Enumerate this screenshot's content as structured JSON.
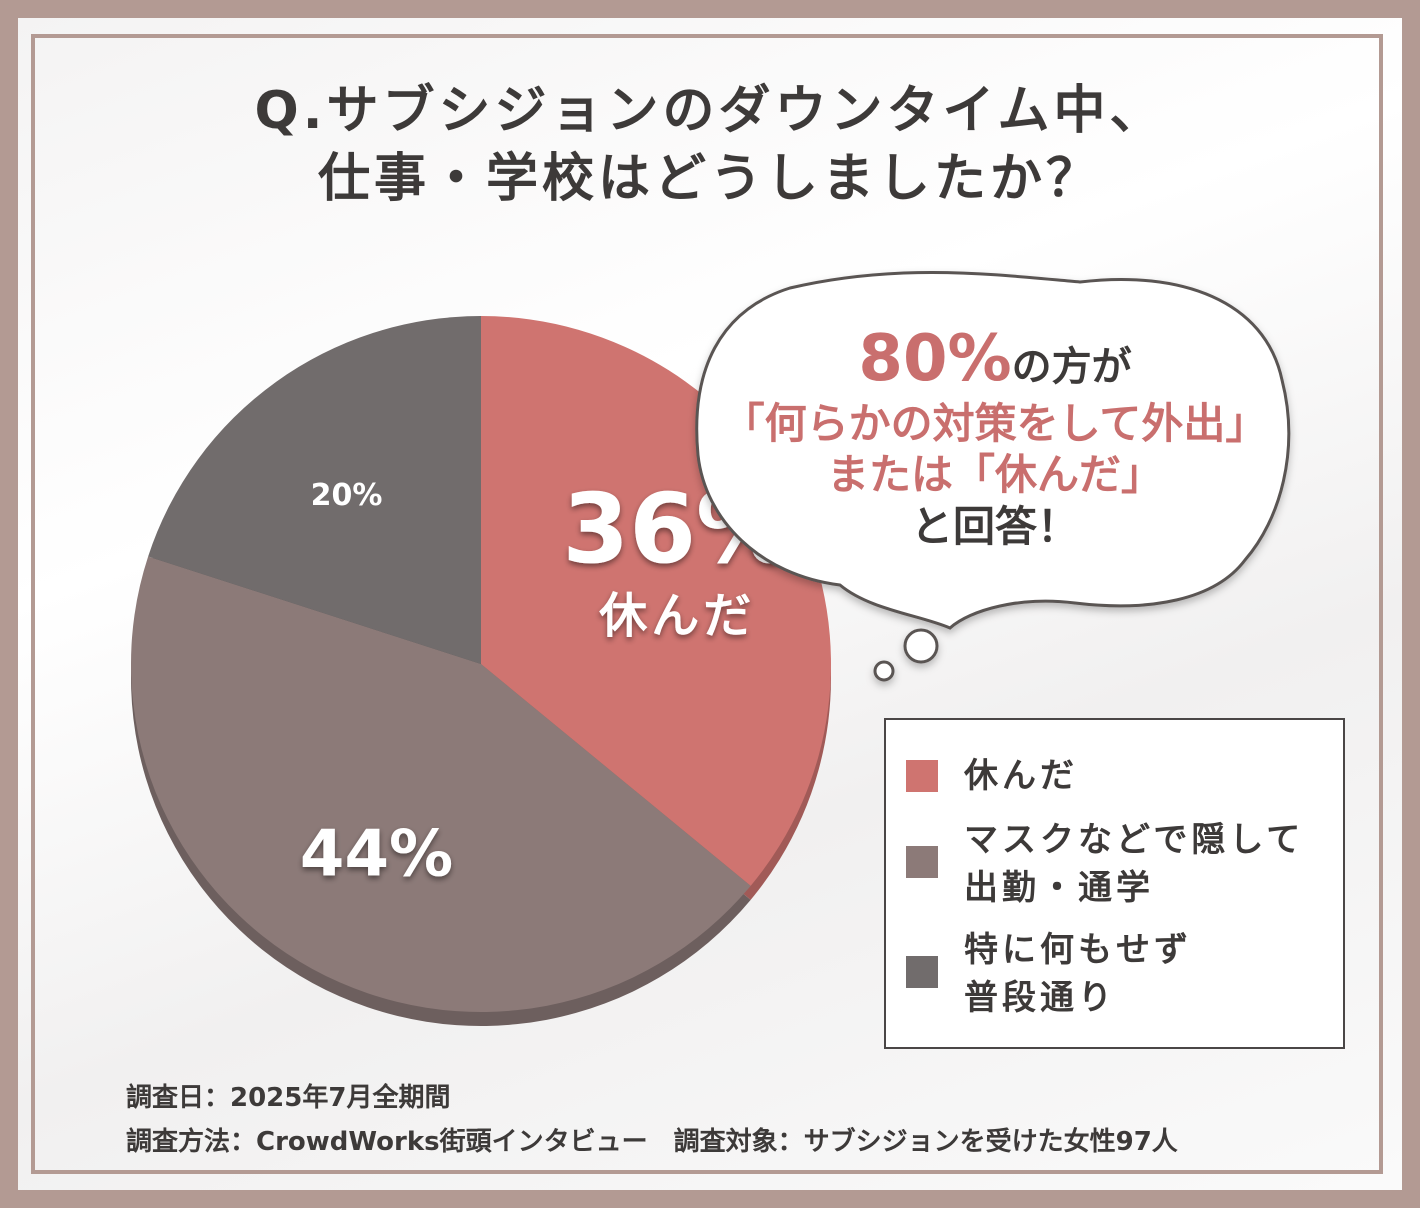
{
  "title": {
    "line1": "Q.サブシジョンのダウンタイム中、",
    "line2": "仕事・学校はどうしましたか？"
  },
  "chart_data": {
    "type": "pie",
    "slices": [
      {
        "label": "休んだ",
        "value": 36,
        "display": "36%",
        "callout": "休んだ",
        "color": "#cf7470"
      },
      {
        "label": "マスクなどで隠して出勤・通学",
        "value": 44,
        "display": "44%",
        "color": "#8c7a78"
      },
      {
        "label": "特に何もせず普段通り",
        "value": 20,
        "display": "20%",
        "color": "#716c6c"
      }
    ],
    "legend_placement": "bottom-right"
  },
  "callout": {
    "pct": "80%",
    "pct_suffix": "の方が",
    "line2": "「何らかの対策をして外出」",
    "line3": "または「休んだ」",
    "line4": "と回答！"
  },
  "legend": {
    "items": [
      {
        "lines": [
          "休んだ"
        ],
        "color": "#cf7470"
      },
      {
        "lines": [
          "マスクなどで隠して",
          "出勤・通学"
        ],
        "color": "#8c7a78"
      },
      {
        "lines": [
          "特に何もせず",
          "普段通り"
        ],
        "color": "#716c6c"
      }
    ]
  },
  "footer": {
    "line1": "調査日：2025年7月全期間",
    "line2": "調査方法：CrowdWorks街頭インタビュー　調査対象：サブシジョンを受けた女性97人"
  },
  "colors": {
    "accent": "#c96f6e",
    "frame": "#b39a93",
    "text": "#3d3a39"
  }
}
